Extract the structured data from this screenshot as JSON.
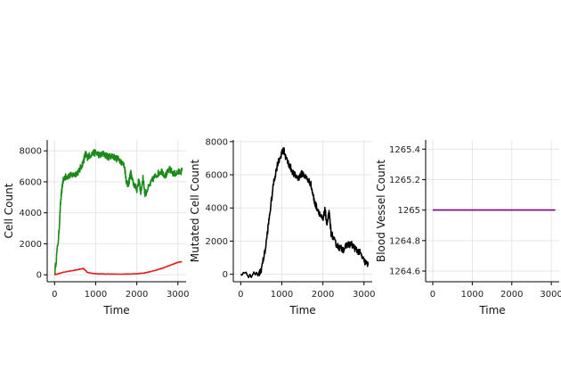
{
  "chart_data": [
    {
      "type": "line",
      "xlabel": "Time",
      "ylabel": "Cell Count",
      "xlim": [
        -180,
        3200
      ],
      "ylim": [
        -450,
        8700
      ],
      "xticks": [
        0,
        1000,
        2000,
        3000
      ],
      "yticks": [
        0,
        2000,
        4000,
        6000,
        8000
      ],
      "ytick_labels": [
        "0",
        "2000",
        "4000",
        "6000",
        "8000"
      ],
      "grid": true,
      "series": [
        {
          "color": "#1a8a1a",
          "x": [
            0,
            100,
            150,
            200,
            250,
            300,
            400,
            500,
            600,
            700,
            750,
            800,
            900,
            1000,
            1100,
            1200,
            1300,
            1400,
            1500,
            1600,
            1700,
            1750,
            1800,
            1850,
            1900,
            2000,
            2050,
            2100,
            2150,
            2200,
            2300,
            2400,
            2500,
            2600,
            2700,
            2800,
            2900,
            3000,
            3100
          ],
          "y": [
            0,
            2500,
            4800,
            6000,
            6300,
            6350,
            6400,
            6500,
            6700,
            7300,
            7800,
            7600,
            7800,
            7900,
            7700,
            7800,
            7600,
            7700,
            7500,
            7400,
            7000,
            6000,
            5800,
            6600,
            6000,
            5500,
            6100,
            5300,
            6300,
            5200,
            5700,
            6200,
            6500,
            6700,
            6400,
            6800,
            6500,
            6600,
            6700
          ],
          "noise": 220
        },
        {
          "color": "#e02020",
          "x": [
            0,
            200,
            400,
            600,
            700,
            800,
            1000,
            1200,
            1500,
            1800,
            2000,
            2200,
            2400,
            2600,
            2800,
            3000,
            3100
          ],
          "y": [
            0,
            150,
            250,
            350,
            400,
            150,
            60,
            50,
            40,
            50,
            70,
            120,
            250,
            400,
            600,
            800,
            850
          ],
          "noise": 15
        }
      ]
    },
    {
      "type": "line",
      "xlabel": "Time",
      "ylabel": "Mutated Cell Count",
      "xlim": [
        -180,
        3200
      ],
      "ylim": [
        -450,
        8100
      ],
      "xticks": [
        0,
        1000,
        2000,
        3000
      ],
      "yticks": [
        0,
        2000,
        4000,
        6000,
        8000
      ],
      "ytick_labels": [
        "0",
        "2000",
        "4000",
        "6000",
        "8000"
      ],
      "grid": true,
      "series": [
        {
          "color": "#000000",
          "x": [
            0,
            450,
            500,
            600,
            700,
            800,
            900,
            1000,
            1050,
            1100,
            1200,
            1300,
            1400,
            1500,
            1600,
            1700,
            1800,
            1900,
            2000,
            2050,
            2100,
            2150,
            2200,
            2300,
            2400,
            2500,
            2600,
            2700,
            2800,
            2900,
            3000,
            3100
          ],
          "y": [
            0,
            0,
            300,
            1500,
            3500,
            5500,
            6700,
            7300,
            7500,
            7000,
            6500,
            6000,
            5800,
            6100,
            5800,
            5500,
            4300,
            3800,
            3200,
            3900,
            3000,
            3700,
            2500,
            1900,
            1600,
            1500,
            1800,
            1800,
            1500,
            1300,
            800,
            550
          ],
          "noise": 200
        }
      ]
    },
    {
      "type": "line",
      "xlabel": "Time",
      "ylabel": "Blood Vessel Count",
      "xlim": [
        -180,
        3200
      ],
      "ylim": [
        1264.53,
        1265.46
      ],
      "xticks": [
        0,
        1000,
        2000,
        3000
      ],
      "yticks": [
        1264.6,
        1264.8,
        1265,
        1265.2,
        1265.4
      ],
      "ytick_labels": [
        "1264.6",
        "1264.8",
        "1265",
        "1265.2",
        "1265.4"
      ],
      "grid": true,
      "series": [
        {
          "color": "#800080",
          "x": [
            0,
            3100
          ],
          "y": [
            1265,
            1265
          ],
          "noise": 0
        }
      ]
    }
  ]
}
